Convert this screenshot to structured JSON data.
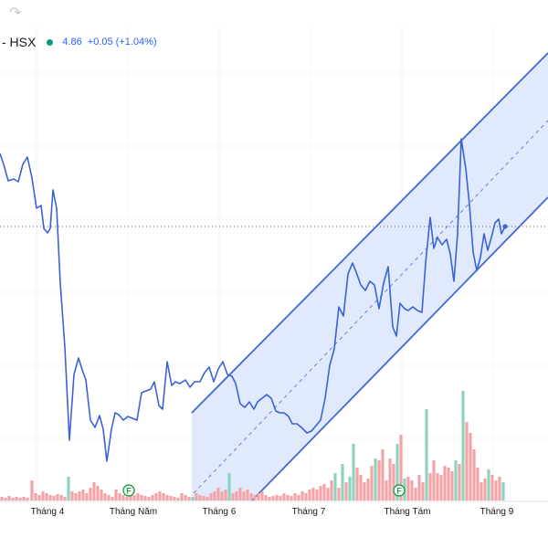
{
  "toolbar": {
    "redo_icon": "redo-arrow-icon"
  },
  "legend": {
    "symbol": "- HSX",
    "last_price": "4.86",
    "change": "+0.05 (+1.04%)",
    "status_color": "#089981"
  },
  "colors": {
    "price_line": "#3b62d6",
    "channel_fill": "#dbe6fb",
    "channel_line": "#4267d4",
    "volume_up": "#8fd1bf",
    "volume_down": "#f2a3a8",
    "event_marker": "#22a148"
  },
  "chart_data": {
    "type": "line",
    "x_ticks": [
      "Tháng 4",
      "Tháng Năm",
      "Tháng 6",
      "Tháng 7",
      "Tháng Tám",
      "Tháng 9"
    ],
    "price_series": [
      [
        0,
        168
      ],
      [
        4,
        180
      ],
      [
        9,
        198
      ],
      [
        15,
        196
      ],
      [
        20,
        199
      ],
      [
        25,
        180
      ],
      [
        30,
        172
      ],
      [
        35,
        195
      ],
      [
        40,
        228
      ],
      [
        45,
        225
      ],
      [
        48,
        250
      ],
      [
        52,
        255
      ],
      [
        55,
        250
      ],
      [
        58,
        208
      ],
      [
        62,
        228
      ],
      [
        66,
        310
      ],
      [
        71,
        380
      ],
      [
        76,
        482
      ],
      [
        81,
        410
      ],
      [
        86,
        392
      ],
      [
        90,
        405
      ],
      [
        94,
        416
      ],
      [
        99,
        460
      ],
      [
        104,
        468
      ],
      [
        109,
        455
      ],
      [
        113,
        470
      ],
      [
        117,
        505
      ],
      [
        122,
        470
      ],
      [
        126,
        452
      ],
      [
        130,
        454
      ],
      [
        135,
        460
      ],
      [
        140,
        456
      ],
      [
        145,
        458
      ],
      [
        150,
        460
      ],
      [
        155,
        430
      ],
      [
        160,
        428
      ],
      [
        165,
        426
      ],
      [
        169,
        418
      ],
      [
        174,
        444
      ],
      [
        178,
        448
      ],
      [
        183,
        396
      ],
      [
        188,
        422
      ],
      [
        192,
        418
      ],
      [
        197,
        420
      ],
      [
        203,
        416
      ],
      [
        208,
        424
      ],
      [
        213,
        418
      ],
      [
        219,
        418
      ],
      [
        224,
        408
      ],
      [
        229,
        402
      ],
      [
        234,
        418
      ],
      [
        239,
        404
      ],
      [
        244,
        396
      ],
      [
        249,
        410
      ],
      [
        254,
        412
      ],
      [
        258,
        420
      ],
      [
        263,
        442
      ],
      [
        268,
        446
      ],
      [
        273,
        440
      ],
      [
        278,
        448
      ],
      [
        282,
        440
      ],
      [
        287,
        436
      ],
      [
        292,
        432
      ],
      [
        297,
        436
      ],
      [
        302,
        450
      ],
      [
        306,
        452
      ],
      [
        311,
        452
      ],
      [
        316,
        456
      ],
      [
        320,
        464
      ],
      [
        325,
        464
      ],
      [
        330,
        468
      ],
      [
        336,
        474
      ],
      [
        341,
        472
      ],
      [
        346,
        466
      ],
      [
        351,
        460
      ],
      [
        356,
        436
      ],
      [
        361,
        400
      ],
      [
        366,
        382
      ],
      [
        371,
        336
      ],
      [
        376,
        346
      ],
      [
        381,
        300
      ],
      [
        386,
        288
      ],
      [
        390,
        298
      ],
      [
        395,
        312
      ],
      [
        400,
        318
      ],
      [
        405,
        308
      ],
      [
        410,
        312
      ],
      [
        415,
        338
      ],
      [
        420,
        310
      ],
      [
        425,
        292
      ],
      [
        430,
        358
      ],
      [
        434,
        368
      ],
      [
        438,
        332
      ],
      [
        443,
        338
      ],
      [
        447,
        340
      ],
      [
        452,
        336
      ],
      [
        457,
        340
      ],
      [
        462,
        342
      ],
      [
        466,
        288
      ],
      [
        471,
        238
      ],
      [
        475,
        272
      ],
      [
        479,
        260
      ],
      [
        484,
        268
      ],
      [
        489,
        262
      ],
      [
        493,
        278
      ],
      [
        497,
        308
      ],
      [
        501,
        256
      ],
      [
        505,
        152
      ],
      [
        510,
        185
      ],
      [
        514,
        224
      ],
      [
        518,
        276
      ],
      [
        522,
        296
      ],
      [
        526,
        282
      ],
      [
        530,
        256
      ],
      [
        534,
        274
      ],
      [
        538,
        260
      ],
      [
        542,
        244
      ],
      [
        546,
        240
      ],
      [
        549,
        256
      ],
      [
        553,
        248
      ]
    ],
    "volume_series": [
      [
        2,
        4,
        "down"
      ],
      [
        6,
        3,
        "down"
      ],
      [
        10,
        5,
        "down"
      ],
      [
        14,
        3,
        "down"
      ],
      [
        18,
        4,
        "down"
      ],
      [
        22,
        3,
        "down"
      ],
      [
        26,
        4,
        "down"
      ],
      [
        30,
        3,
        "down"
      ],
      [
        35,
        22,
        "down"
      ],
      [
        39,
        8,
        "down"
      ],
      [
        43,
        6,
        "down"
      ],
      [
        47,
        10,
        "down"
      ],
      [
        51,
        8,
        "down"
      ],
      [
        55,
        6,
        "down"
      ],
      [
        59,
        5,
        "down"
      ],
      [
        63,
        7,
        "down"
      ],
      [
        67,
        6,
        "down"
      ],
      [
        71,
        4,
        "down"
      ],
      [
        75,
        26,
        "up"
      ],
      [
        79,
        10,
        "down"
      ],
      [
        83,
        8,
        "down"
      ],
      [
        87,
        10,
        "down"
      ],
      [
        91,
        12,
        "down"
      ],
      [
        95,
        8,
        "down"
      ],
      [
        99,
        14,
        "down"
      ],
      [
        103,
        20,
        "down"
      ],
      [
        107,
        16,
        "down"
      ],
      [
        111,
        12,
        "down"
      ],
      [
        115,
        8,
        "down"
      ],
      [
        119,
        6,
        "down"
      ],
      [
        123,
        4,
        "down"
      ],
      [
        127,
        12,
        "down"
      ],
      [
        131,
        8,
        "down"
      ],
      [
        135,
        6,
        "down"
      ],
      [
        139,
        4,
        "down"
      ],
      [
        143,
        5,
        "down"
      ],
      [
        147,
        6,
        "down"
      ],
      [
        151,
        8,
        "down"
      ],
      [
        155,
        6,
        "down"
      ],
      [
        159,
        5,
        "down"
      ],
      [
        163,
        4,
        "down"
      ],
      [
        167,
        6,
        "down"
      ],
      [
        171,
        8,
        "down"
      ],
      [
        175,
        10,
        "down"
      ],
      [
        179,
        8,
        "down"
      ],
      [
        183,
        6,
        "down"
      ],
      [
        187,
        5,
        "down"
      ],
      [
        191,
        4,
        "down"
      ],
      [
        195,
        3,
        "down"
      ],
      [
        199,
        8,
        "down"
      ],
      [
        203,
        6,
        "down"
      ],
      [
        207,
        4,
        "down"
      ],
      [
        211,
        4,
        "up"
      ],
      [
        215,
        8,
        "down"
      ],
      [
        219,
        6,
        "down"
      ],
      [
        223,
        5,
        "down"
      ],
      [
        227,
        4,
        "down"
      ],
      [
        231,
        8,
        "down"
      ],
      [
        235,
        10,
        "down"
      ],
      [
        239,
        14,
        "down"
      ],
      [
        243,
        10,
        "down"
      ],
      [
        247,
        12,
        "down"
      ],
      [
        251,
        30,
        "up"
      ],
      [
        255,
        8,
        "down"
      ],
      [
        259,
        10,
        "down"
      ],
      [
        263,
        14,
        "down"
      ],
      [
        267,
        10,
        "down"
      ],
      [
        271,
        12,
        "down"
      ],
      [
        275,
        8,
        "down"
      ],
      [
        279,
        6,
        "down"
      ],
      [
        283,
        8,
        "down"
      ],
      [
        287,
        10,
        "down"
      ],
      [
        291,
        6,
        "down"
      ],
      [
        295,
        4,
        "down"
      ],
      [
        299,
        5,
        "down"
      ],
      [
        303,
        6,
        "down"
      ],
      [
        307,
        5,
        "down"
      ],
      [
        311,
        8,
        "down"
      ],
      [
        315,
        6,
        "down"
      ],
      [
        319,
        5,
        "down"
      ],
      [
        323,
        8,
        "down"
      ],
      [
        327,
        6,
        "down"
      ],
      [
        331,
        10,
        "down"
      ],
      [
        335,
        8,
        "down"
      ],
      [
        339,
        12,
        "down"
      ],
      [
        343,
        14,
        "down"
      ],
      [
        347,
        12,
        "down"
      ],
      [
        351,
        16,
        "down"
      ],
      [
        355,
        18,
        "down"
      ],
      [
        359,
        14,
        "down"
      ],
      [
        363,
        22,
        "down"
      ],
      [
        367,
        30,
        "up"
      ],
      [
        371,
        14,
        "down"
      ],
      [
        375,
        40,
        "up"
      ],
      [
        379,
        20,
        "down"
      ],
      [
        383,
        26,
        "up"
      ],
      [
        387,
        62,
        "up"
      ],
      [
        391,
        36,
        "down"
      ],
      [
        395,
        28,
        "down"
      ],
      [
        399,
        20,
        "down"
      ],
      [
        403,
        24,
        "down"
      ],
      [
        407,
        38,
        "down"
      ],
      [
        411,
        46,
        "up"
      ],
      [
        415,
        44,
        "down"
      ],
      [
        419,
        56,
        "down"
      ],
      [
        423,
        22,
        "down"
      ],
      [
        427,
        46,
        "down"
      ],
      [
        431,
        40,
        "down"
      ],
      [
        435,
        62,
        "up"
      ],
      [
        439,
        72,
        "down"
      ],
      [
        443,
        24,
        "up"
      ],
      [
        447,
        26,
        "down"
      ],
      [
        451,
        22,
        "down"
      ],
      [
        455,
        14,
        "down"
      ],
      [
        459,
        28,
        "down"
      ],
      [
        463,
        20,
        "down"
      ],
      [
        467,
        100,
        "up"
      ],
      [
        471,
        30,
        "down"
      ],
      [
        475,
        44,
        "down"
      ],
      [
        479,
        30,
        "down"
      ],
      [
        483,
        28,
        "down"
      ],
      [
        487,
        38,
        "down"
      ],
      [
        491,
        36,
        "down"
      ],
      [
        495,
        32,
        "down"
      ],
      [
        499,
        44,
        "up"
      ],
      [
        503,
        40,
        "down"
      ],
      [
        507,
        120,
        "up"
      ],
      [
        511,
        86,
        "down"
      ],
      [
        515,
        74,
        "down"
      ],
      [
        519,
        56,
        "down"
      ],
      [
        523,
        36,
        "down"
      ],
      [
        527,
        20,
        "down"
      ],
      [
        531,
        24,
        "down"
      ],
      [
        535,
        34,
        "up"
      ],
      [
        539,
        28,
        "down"
      ],
      [
        543,
        22,
        "down"
      ],
      [
        547,
        26,
        "down"
      ],
      [
        551,
        20,
        "up"
      ]
    ],
    "event_markers": [
      {
        "label": "F",
        "at": 141
      },
      {
        "label": "F",
        "at": 437
      }
    ],
    "last_value_line": 248
  }
}
